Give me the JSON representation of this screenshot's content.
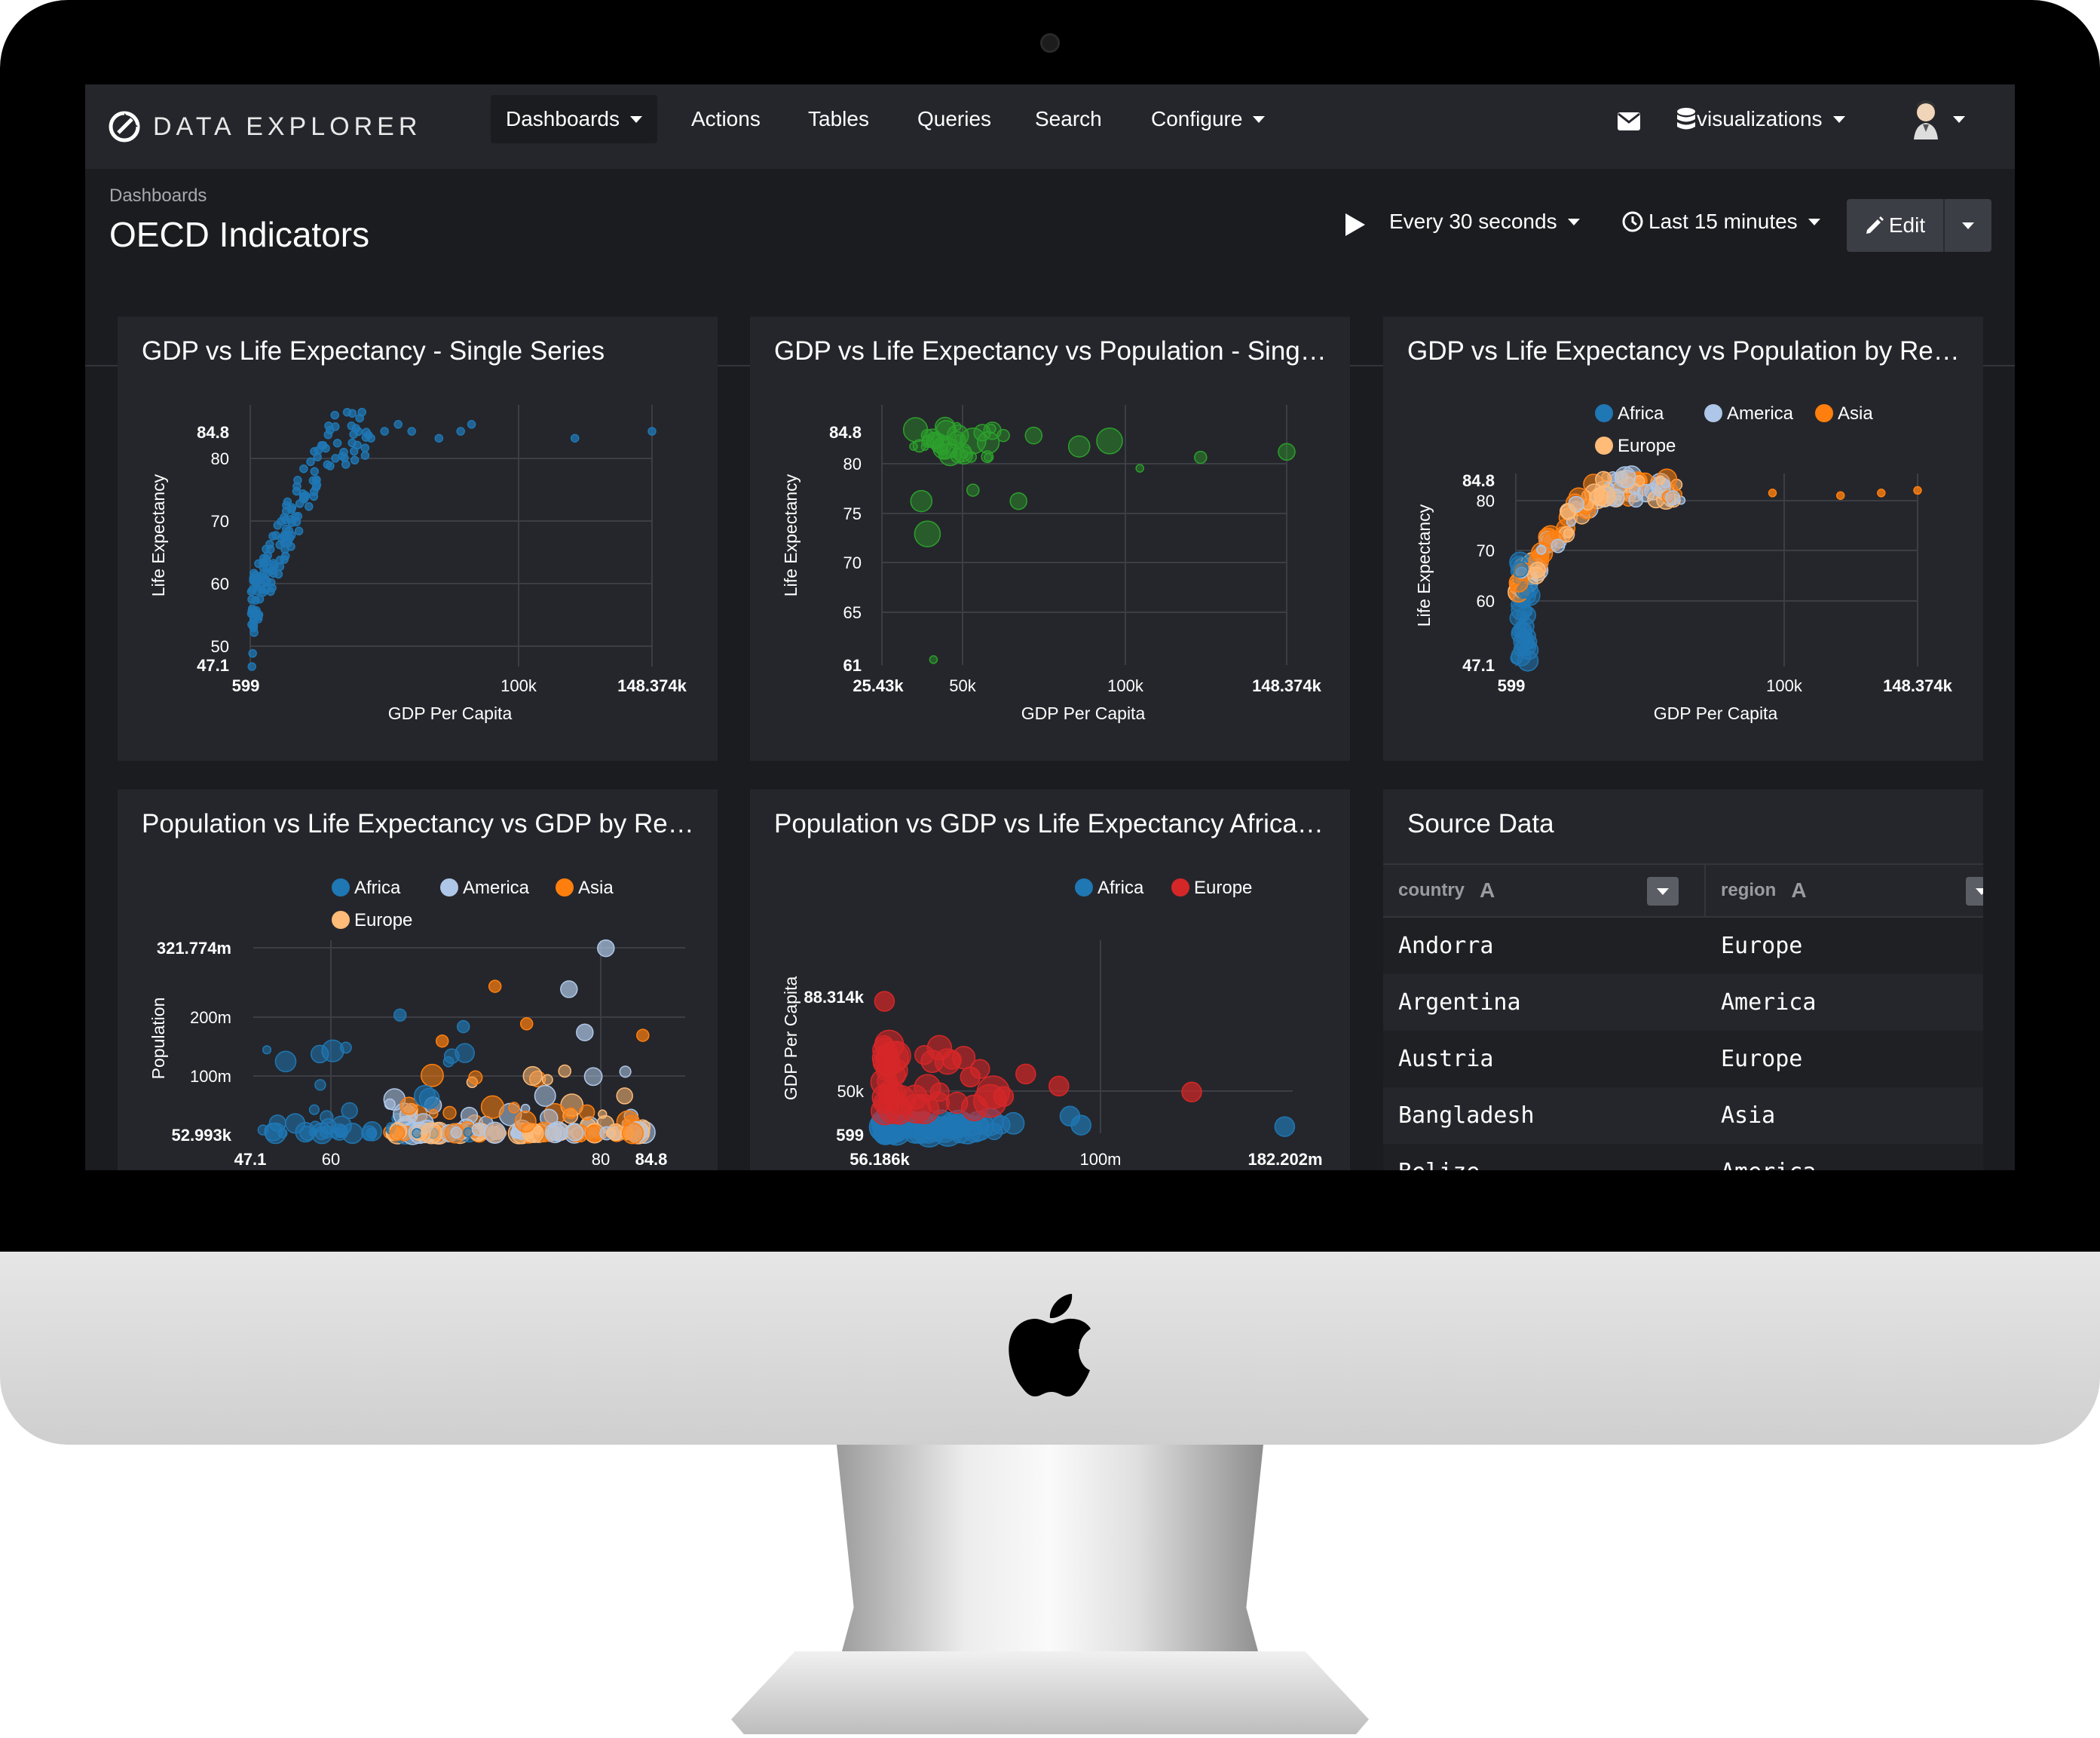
{
  "colors": {
    "accent": "#1f77b4",
    "bg": "#1b1c20",
    "panel": "#25262b",
    "africa": "#1f77b4",
    "america": "#aec7e8",
    "asia": "#ff7f0e",
    "europe": "#ffbb78",
    "europe_red": "#d62728",
    "green": "#2ca02c"
  },
  "nav": {
    "brand": "DATA EXPLORER",
    "items": [
      {
        "label": "Dashboards"
      },
      {
        "label": "Actions"
      },
      {
        "label": "Tables"
      },
      {
        "label": "Queries"
      },
      {
        "label": "Search"
      },
      {
        "label": "Configure"
      }
    ],
    "datasource": "visualizations"
  },
  "header": {
    "breadcrumb": "Dashboards",
    "title": "OECD Indicators",
    "refresh": "Every 30 seconds",
    "timerange": "Last 15 minutes",
    "edit": "Edit"
  },
  "panels": [
    {
      "title": "GDP vs Life Expectancy - Single Series"
    },
    {
      "title": "GDP vs Life Expectancy vs Population - Sing…"
    },
    {
      "title": "GDP vs Life Expectancy vs Population by Re…"
    },
    {
      "title": "Population vs Life Expectancy vs GDP by Re…"
    },
    {
      "title": "Population vs GDP vs Life Expectancy Africa…"
    },
    {
      "title": "Source Data"
    }
  ],
  "chart_data": [
    {
      "type": "scatter",
      "title": "GDP vs Life Expectancy - Single Series",
      "xlabel": "GDP Per Capita",
      "ylabel": "Life Expectancy",
      "xlim": [
        599,
        148374
      ],
      "ylim": [
        47.1,
        84.8
      ],
      "xticks": [
        "599",
        "100k",
        "148.374k"
      ],
      "yticks": [
        "84.8",
        "80",
        "70",
        "60",
        "50",
        "47.1"
      ],
      "series": [
        {
          "color": "#1f77b4",
          "points": [
            [
              1200,
              47.1
            ],
            [
              1500,
              49
            ],
            [
              2000,
              52
            ],
            [
              2200,
              55
            ],
            [
              3000,
              58
            ],
            [
              4500,
              60
            ],
            [
              6000,
              62
            ],
            [
              8000,
              64
            ],
            [
              10000,
              66
            ],
            [
              12000,
              68
            ],
            [
              16000,
              70
            ],
            [
              20000,
              72
            ],
            [
              25000,
              74
            ],
            [
              30000,
              76
            ],
            [
              35000,
              78
            ],
            [
              40000,
              79
            ],
            [
              45000,
              80
            ],
            [
              50000,
              81
            ],
            [
              55000,
              82
            ],
            [
              60000,
              81
            ],
            [
              70000,
              80
            ],
            [
              78000,
              81
            ],
            [
              82000,
              82
            ],
            [
              120000,
              80
            ],
            [
              148374,
              81
            ]
          ]
        }
      ]
    },
    {
      "type": "scatter",
      "title": "GDP vs Life Expectancy vs Population - Sing…",
      "xlabel": "GDP Per Capita",
      "ylabel": "Life Expectancy",
      "xlim": [
        0,
        148374
      ],
      "ylim": [
        61,
        84.8
      ],
      "xticks": [
        "25.43k",
        "50k",
        "100k",
        "148.374k"
      ],
      "yticks": [
        "84.8",
        "80",
        "75",
        "70",
        "65",
        "61"
      ],
      "series": [
        {
          "color": "#2ca02c",
          "points": [
            [
              25430,
              81
            ],
            [
              30000,
              82
            ],
            [
              35000,
              81
            ],
            [
              40000,
              82
            ],
            [
              45000,
              81.5
            ],
            [
              50000,
              80
            ],
            [
              55000,
              82
            ],
            [
              65000,
              82
            ],
            [
              80000,
              81
            ],
            [
              90000,
              81.5
            ],
            [
              100000,
              79
            ],
            [
              120000,
              80
            ],
            [
              148374,
              80.5
            ],
            [
              28000,
              76
            ],
            [
              30000,
              73
            ],
            [
              32000,
              61.5
            ],
            [
              45000,
              77
            ],
            [
              60000,
              76
            ]
          ]
        }
      ]
    },
    {
      "type": "scatter",
      "title": "GDP vs Life Expectancy vs Population by Re…",
      "xlabel": "GDP Per Capita",
      "ylabel": "Life Expectancy",
      "xlim": [
        599,
        148374
      ],
      "ylim": [
        47.1,
        84.8
      ],
      "xticks": [
        "599",
        "100k",
        "148.374k"
      ],
      "yticks": [
        "84.8",
        "80",
        "70",
        "60",
        "47.1"
      ],
      "legend": [
        {
          "name": "Africa",
          "color": "#1f77b4"
        },
        {
          "name": "America",
          "color": "#aec7e8"
        },
        {
          "name": "Asia",
          "color": "#ff7f0e"
        },
        {
          "name": "Europe",
          "color": "#ffbb78"
        }
      ],
      "legend_position": "top"
    },
    {
      "type": "scatter",
      "title": "Population vs Life Expectancy vs GDP by Re…",
      "xlabel": "",
      "ylabel": "Population",
      "xlim": [
        47.1,
        84.8
      ],
      "ylim": [
        52993,
        321774000
      ],
      "xticks": [
        "47.1",
        "60",
        "80",
        "84.8"
      ],
      "yticks": [
        "321.774m",
        "200m",
        "100m",
        "52.993k"
      ],
      "legend": [
        {
          "name": "Africa",
          "color": "#1f77b4"
        },
        {
          "name": "America",
          "color": "#aec7e8"
        },
        {
          "name": "Asia",
          "color": "#ff7f0e"
        },
        {
          "name": "Europe",
          "color": "#ffbb78"
        }
      ],
      "legend_position": "top"
    },
    {
      "type": "scatter",
      "title": "Population vs GDP vs Life Expectancy Africa…",
      "xlabel": "",
      "ylabel": "GDP Per Capita",
      "xlim": [
        56186,
        182202000
      ],
      "ylim": [
        599,
        88314
      ],
      "xticks": [
        "56.186k",
        "100m",
        "182.202m"
      ],
      "yticks": [
        "88.314k",
        "50k",
        "599"
      ],
      "legend": [
        {
          "name": "Africa",
          "color": "#1f77b4"
        },
        {
          "name": "Europe",
          "color": "#d62728"
        }
      ],
      "legend_position": "top"
    },
    {
      "type": "table",
      "title": "Source Data",
      "columns": [
        "country",
        "region"
      ],
      "rows": [
        [
          "Andorra",
          "Europe"
        ],
        [
          "Argentina",
          "America"
        ],
        [
          "Austria",
          "Europe"
        ],
        [
          "Bangladesh",
          "Asia"
        ],
        [
          "Belize",
          "America"
        ]
      ]
    }
  ],
  "table": {
    "col1": "country",
    "col2": "region",
    "type_glyph": "A",
    "rows": [
      {
        "country": "Andorra",
        "region": "Europe"
      },
      {
        "country": "Argentina",
        "region": "America"
      },
      {
        "country": "Austria",
        "region": "Europe"
      },
      {
        "country": "Bangladesh",
        "region": "Asia"
      },
      {
        "country": "Belize",
        "region": "America"
      }
    ]
  }
}
